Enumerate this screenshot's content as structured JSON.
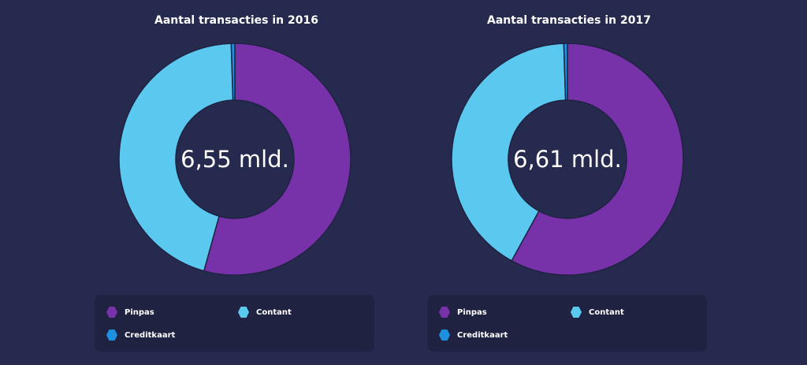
{
  "chart_data": [
    {
      "type": "pie",
      "title": "Aantal transacties in 2016",
      "center_label": "6,55 mld.",
      "categories": [
        "Pinpas",
        "Contant",
        "Creditkaart"
      ],
      "values": [
        54.3,
        45.2,
        0.5
      ],
      "colors": [
        "#7731a9",
        "#5bc8f0",
        "#1e90e0"
      ],
      "legend": "bottom"
    },
    {
      "type": "pie",
      "title": "Aantal transacties in 2017",
      "center_label": "6,61 mld.",
      "categories": [
        "Pinpas",
        "Contant",
        "Creditkaart"
      ],
      "values": [
        58.0,
        41.5,
        0.5
      ],
      "colors": [
        "#7731a9",
        "#5bc8f0",
        "#1e90e0"
      ],
      "legend": "bottom"
    }
  ]
}
